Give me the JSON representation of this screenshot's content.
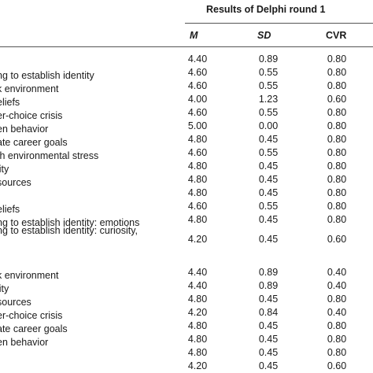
{
  "table": {
    "group_header": "Results of Delphi round 1",
    "columns": [
      "M",
      "SD",
      "CVR"
    ],
    "rows": [
      {
        "label": "",
        "m": "4.40",
        "sd": "0.89",
        "cvr": "0.80"
      },
      {
        "label": "ng to establish identity",
        "m": "4.60",
        "sd": "0.55",
        "cvr": "0.80"
      },
      {
        "label": "k environment",
        "m": "4.60",
        "sd": "0.55",
        "cvr": "0.80"
      },
      {
        "label": "eliefs",
        "m": "4.00",
        "sd": "1.23",
        "cvr": "0.60"
      },
      {
        "label": "er-choice crisis",
        "m": "4.60",
        "sd": "0.55",
        "cvr": "0.80"
      },
      {
        "label": "en behavior",
        "m": "5.00",
        "sd": "0.00",
        "cvr": "0.80"
      },
      {
        "label": "ate career goals",
        "m": "4.80",
        "sd": "0.45",
        "cvr": "0.80"
      },
      {
        "label": "th environmental stress",
        "m": "4.60",
        "sd": "0.55",
        "cvr": "0.80"
      },
      {
        "label": "lity",
        "m": "4.80",
        "sd": "0.45",
        "cvr": "0.80"
      },
      {
        "label": "sources",
        "m": "4.80",
        "sd": "0.45",
        "cvr": "0.80"
      },
      {
        "label": "",
        "m": "4.80",
        "sd": "0.45",
        "cvr": "0.80"
      },
      {
        "label": "eliefs",
        "m": "4.60",
        "sd": "0.55",
        "cvr": "0.80"
      },
      {
        "label": "ng to establish identity: emotions",
        "m": "4.80",
        "sd": "0.45",
        "cvr": "0.80"
      },
      {
        "label": "ng to establish identity: curiosity,",
        "m": "4.20",
        "sd": "0.45",
        "cvr": "0.60"
      },
      {
        "label": "k environment",
        "m": "4.40",
        "sd": "0.89",
        "cvr": "0.40"
      },
      {
        "label": "lity",
        "m": "4.40",
        "sd": "0.89",
        "cvr": "0.40"
      },
      {
        "label": "sources",
        "m": "4.80",
        "sd": "0.45",
        "cvr": "0.80"
      },
      {
        "label": "er-choice crisis",
        "m": "4.20",
        "sd": "0.84",
        "cvr": "0.40"
      },
      {
        "label": "ate career goals",
        "m": "4.80",
        "sd": "0.45",
        "cvr": "0.80"
      },
      {
        "label": "en behavior",
        "m": "4.80",
        "sd": "0.45",
        "cvr": "0.80"
      },
      {
        "label": "",
        "m": "4.80",
        "sd": "0.45",
        "cvr": "0.80"
      },
      {
        "label": "",
        "m": "4.20",
        "sd": "0.45",
        "cvr": "0.60"
      }
    ]
  }
}
